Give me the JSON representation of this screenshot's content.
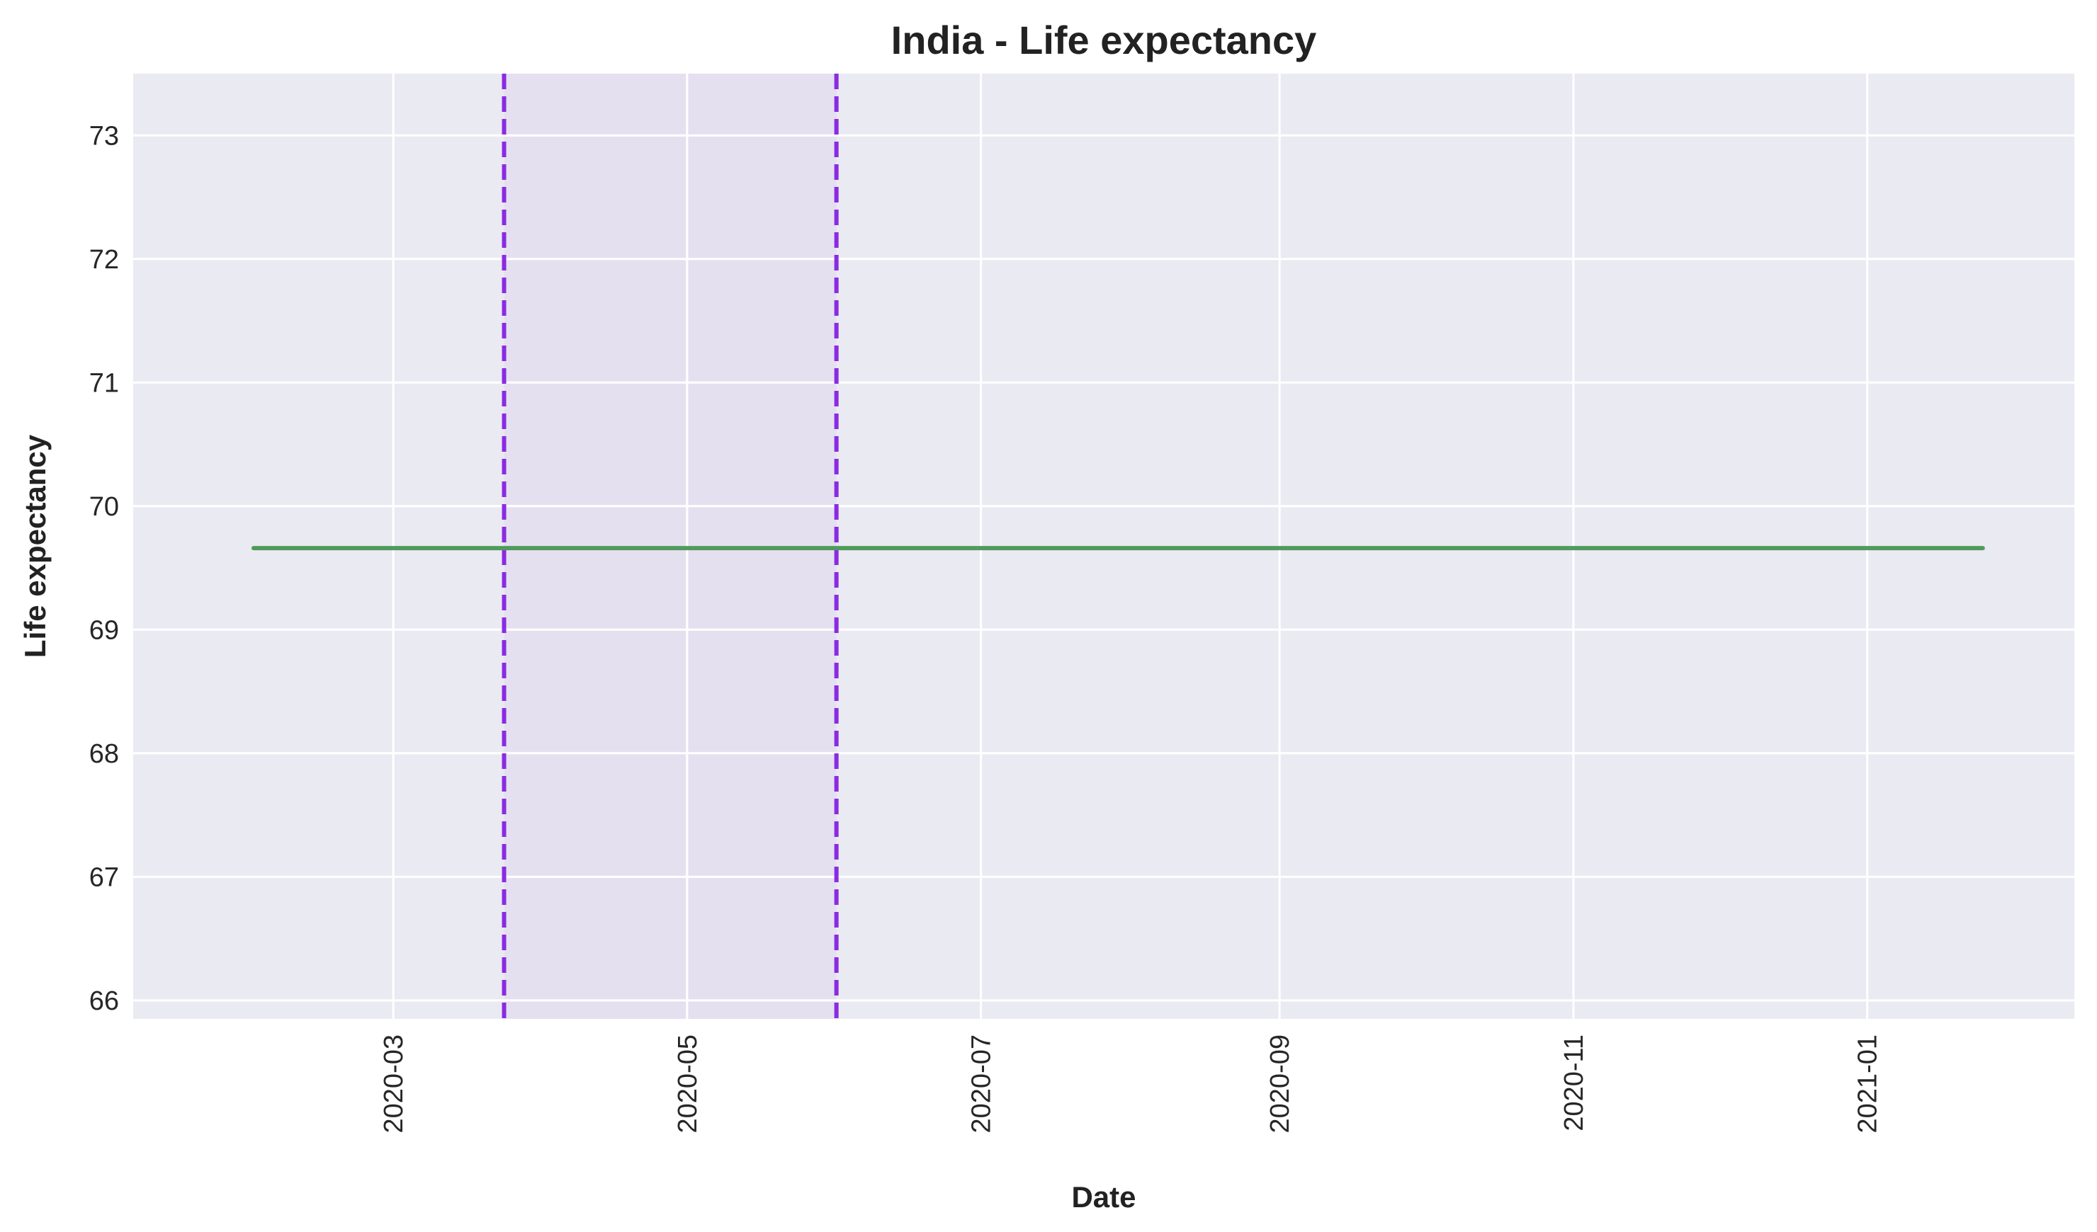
{
  "chart_data": {
    "type": "line",
    "title": "India - Life expectancy",
    "xlabel": "Date",
    "ylabel": "Life expectancy",
    "x_axis_type": "date",
    "xlim": [
      "2020-01-07",
      "2021-02-13"
    ],
    "ylim": [
      65.85,
      73.5
    ],
    "x_ticks": [
      "2020-03",
      "2020-05",
      "2020-07",
      "2020-09",
      "2020-11",
      "2021-01"
    ],
    "y_ticks": [
      66,
      67,
      68,
      69,
      70,
      71,
      72,
      73
    ],
    "grid": true,
    "legend": "none",
    "series": [
      {
        "x": [
          "2020-02-01",
          "2021-01-25"
        ],
        "y": [
          69.66,
          69.66
        ],
        "color": "#4f9a5c"
      }
    ],
    "vlines": [
      {
        "x": "2020-03-24",
        "color": "#8a2be2",
        "style": "dashed"
      },
      {
        "x": "2020-06-01",
        "color": "#8a2be2",
        "style": "dashed"
      }
    ],
    "shaded_spans": [
      {
        "x": [
          "2020-03-24",
          "2020-06-01"
        ],
        "color": "#e5e0f0"
      }
    ],
    "colors": {
      "background": "#eaeaf2",
      "grid": "#ffffff"
    }
  }
}
